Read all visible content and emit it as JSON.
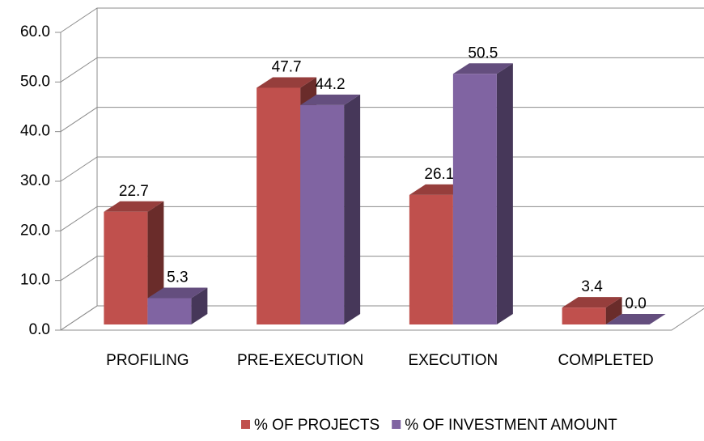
{
  "chart_data": {
    "type": "bar3d",
    "categories": [
      "PROFILING",
      "PRE-EXECUTION",
      "EXECUTION",
      "COMPLETED"
    ],
    "series": [
      {
        "name": "% OF PROJECTS",
        "color": "#c0504d",
        "values": [
          22.7,
          47.7,
          26.1,
          3.4
        ]
      },
      {
        "name": "% OF INVESTMENT AMOUNT",
        "color": "#8064a2",
        "values": [
          5.3,
          44.2,
          50.5,
          0.0
        ],
        "value_labels": [
          "5.3",
          "44.2",
          "50.5",
          "0.0"
        ]
      }
    ],
    "ylim": [
      0,
      60
    ],
    "yticks": [
      {
        "value": 0,
        "label": "0.0"
      },
      {
        "value": 10,
        "label": "10.0"
      },
      {
        "value": 20,
        "label": "20.0"
      },
      {
        "value": 30,
        "label": "30.0"
      },
      {
        "value": 40,
        "label": "40.0"
      },
      {
        "value": 50,
        "label": "50.0"
      },
      {
        "value": 60,
        "label": "60.0"
      }
    ],
    "grid": true,
    "legend": "bottom"
  }
}
